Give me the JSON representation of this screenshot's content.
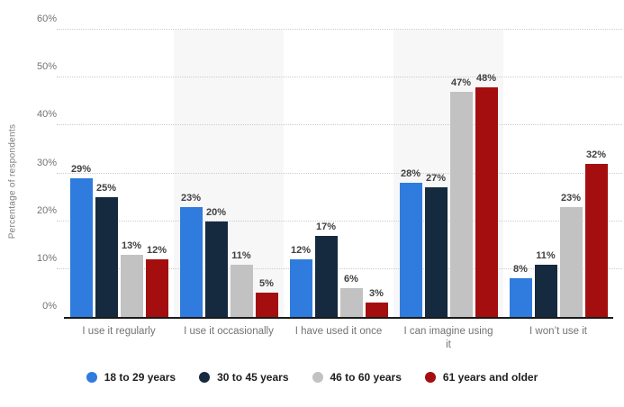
{
  "chart": {
    "y_axis_title": "Percentage of respondents",
    "yticks": [
      "0%",
      "10%",
      "20%",
      "30%",
      "40%",
      "50%",
      "60%"
    ],
    "band_slots": [
      1,
      3
    ],
    "band_color": "#f7f7f7"
  },
  "chart_data": {
    "type": "bar",
    "title": "",
    "xlabel": "",
    "ylabel": "Percentage of respondents",
    "ylim": [
      0,
      60
    ],
    "grid": "horizontal dotted lines every 10%",
    "legend_position": "bottom-center",
    "value_label_suffix": "%",
    "categories": [
      "I use it regularly",
      "I use it occasionally",
      "I have used it once",
      "I can imagine using it",
      "I won’t use it"
    ],
    "series": [
      {
        "name": "18 to 29 years",
        "color": "#2f7bde",
        "values": [
          29,
          23,
          12,
          28,
          8
        ]
      },
      {
        "name": "30 to 45 years",
        "color": "#152a3e",
        "values": [
          25,
          20,
          17,
          27,
          11
        ]
      },
      {
        "name": "46 to 60 years",
        "color": "#c2c2c2",
        "values": [
          13,
          11,
          6,
          47,
          23
        ]
      },
      {
        "name": "61 years and older",
        "color": "#a50e0e",
        "values": [
          12,
          5,
          3,
          48,
          32
        ]
      }
    ]
  }
}
